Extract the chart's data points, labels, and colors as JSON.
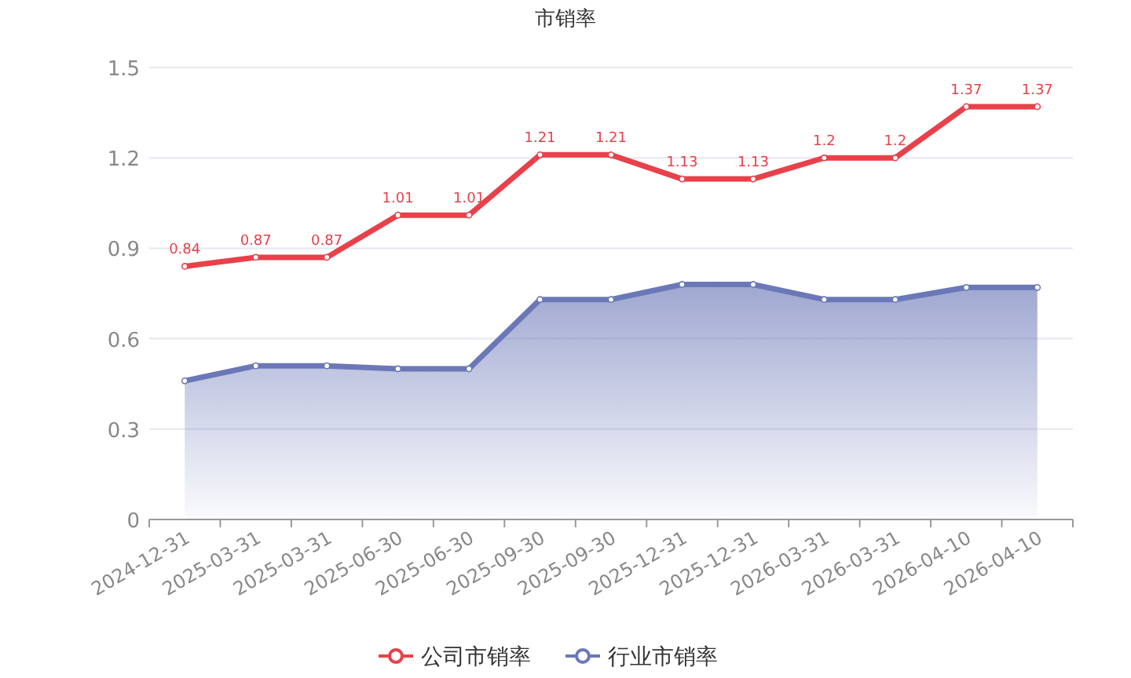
{
  "chart_data": {
    "type": "line",
    "title": "市销率",
    "categories": [
      "2024-12-31",
      "2025-03-31",
      "2025-03-31",
      "2025-06-30",
      "2025-06-30",
      "2025-09-30",
      "2025-09-30",
      "2025-12-31",
      "2025-12-31",
      "2026-03-31",
      "2026-03-31",
      "2026-04-10",
      "2026-04-10"
    ],
    "series": [
      {
        "name": "公司市销率",
        "type": "line",
        "color": "#e8414a",
        "values": [
          0.84,
          0.87,
          0.87,
          1.01,
          1.01,
          1.21,
          1.21,
          1.13,
          1.13,
          1.2,
          1.2,
          1.37,
          1.37
        ],
        "value_labels": [
          "0.84",
          "0.87",
          "0.87",
          "1.01",
          "1.01",
          "1.21",
          "1.21",
          "1.13",
          "1.13",
          "1.2",
          "1.2",
          "1.37",
          "1.37"
        ]
      },
      {
        "name": "行业市销率",
        "type": "area",
        "color": "#6b78b8",
        "values": [
          0.46,
          0.51,
          0.51,
          0.5,
          0.5,
          0.73,
          0.73,
          0.78,
          0.78,
          0.73,
          0.73,
          0.77,
          0.77
        ]
      }
    ],
    "ylim": [
      0,
      1.5
    ],
    "yticks": [
      0,
      0.3,
      0.6,
      0.9,
      1.2,
      1.5
    ],
    "grid": "y",
    "legend": "bottom",
    "marker": "circle",
    "line_style": "solid"
  }
}
